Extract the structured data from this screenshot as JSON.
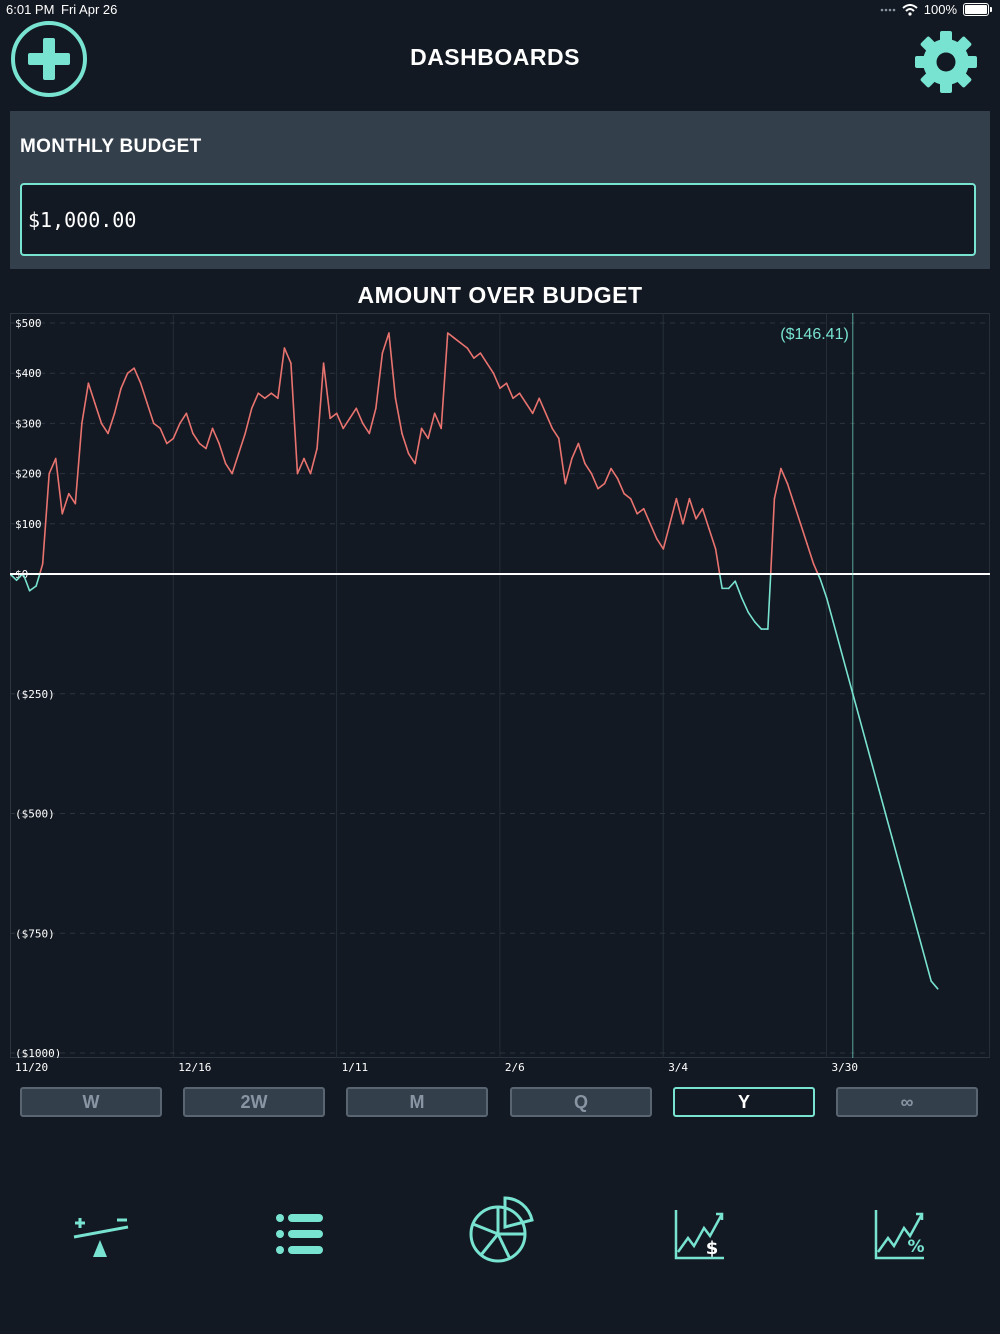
{
  "status": {
    "time": "6:01 PM",
    "date": "Fri Apr 26",
    "battery": "100%"
  },
  "header": {
    "title": "DASHBOARDS"
  },
  "budget": {
    "label": "MONTHLY BUDGET",
    "value": "$1,000.00"
  },
  "colors": {
    "accent": "#78e3d1",
    "over": "#e8736f",
    "background": "#131922",
    "card": "#343f4c"
  },
  "periods": [
    {
      "label": "W",
      "active": false
    },
    {
      "label": "2W",
      "active": false
    },
    {
      "label": "M",
      "active": false
    },
    {
      "label": "Q",
      "active": false
    },
    {
      "label": "Y",
      "active": true
    },
    {
      "label": "∞",
      "active": false
    }
  ],
  "tabs": [
    {
      "icon": "balance-icon"
    },
    {
      "icon": "list-icon"
    },
    {
      "icon": "pie-chart-icon"
    },
    {
      "icon": "growth-dollar-icon"
    },
    {
      "icon": "growth-percent-icon"
    }
  ],
  "chart_data": {
    "type": "line",
    "title": "AMOUNT OVER BUDGET",
    "ylim": [
      -1000,
      500
    ],
    "y_ticks": [
      {
        "value": 500,
        "label": "$500"
      },
      {
        "value": 400,
        "label": "$400"
      },
      {
        "value": 300,
        "label": "$300"
      },
      {
        "value": 200,
        "label": "$200"
      },
      {
        "value": 100,
        "label": "$100"
      },
      {
        "value": 0,
        "label": "$0"
      },
      {
        "value": -250,
        "label": "($250)"
      },
      {
        "value": -500,
        "label": "($500)"
      },
      {
        "value": -750,
        "label": "($750)"
      },
      {
        "value": -1000,
        "label": "($1000)"
      }
    ],
    "x_ticks": [
      "11/20",
      "12/16",
      "1/11",
      "2/6",
      "3/4",
      "3/30"
    ],
    "xlim_days": [
      0,
      150
    ],
    "cursor": {
      "day": 129,
      "label": "($146.41)"
    },
    "values": [
      0,
      -13,
      1,
      -35,
      -25,
      20,
      200,
      230,
      120,
      160,
      140,
      300,
      380,
      340,
      300,
      280,
      320,
      370,
      400,
      410,
      380,
      340,
      300,
      290,
      260,
      270,
      300,
      320,
      280,
      260,
      250,
      290,
      260,
      220,
      200,
      240,
      280,
      330,
      360,
      350,
      360,
      350,
      450,
      420,
      200,
      230,
      200,
      250,
      420,
      310,
      320,
      290,
      310,
      330,
      300,
      280,
      330,
      440,
      480,
      350,
      280,
      240,
      220,
      290,
      270,
      320,
      290,
      480,
      470,
      460,
      450,
      430,
      440,
      420,
      400,
      370,
      380,
      350,
      360,
      340,
      320,
      350,
      320,
      290,
      270,
      180,
      230,
      260,
      220,
      200,
      170,
      180,
      210,
      190,
      160,
      150,
      120,
      130,
      100,
      70,
      50,
      100,
      150,
      100,
      150,
      110,
      130,
      90,
      50,
      -30,
      -30,
      -15,
      -50,
      -80,
      -100,
      -115,
      -115,
      150,
      210,
      180,
      140,
      100,
      60,
      20,
      -10,
      -50,
      -100,
      -150,
      -200,
      -250,
      -300,
      -350,
      -400,
      -450,
      -500,
      -550,
      -600,
      -650,
      -700,
      -750,
      -800,
      -850,
      -866
    ]
  }
}
